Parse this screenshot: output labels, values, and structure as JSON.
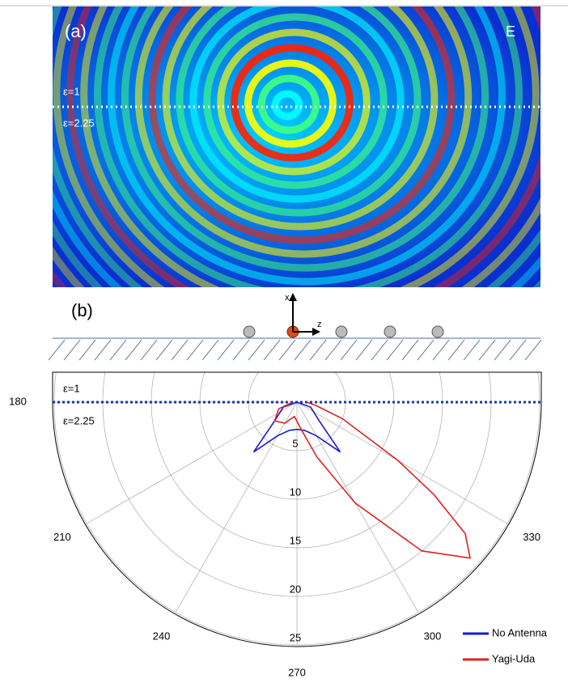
{
  "panel_a": {
    "label": "(a)",
    "field": "E",
    "upper_medium": "ε=1",
    "lower_medium": "ε=2.25"
  },
  "panel_b": {
    "label": "(b)",
    "axis_x": "x",
    "axis_z": "z"
  },
  "chart_data": {
    "type": "polar",
    "upper_medium": "ε=1",
    "lower_medium": "ε=2.25",
    "rlim": [
      0,
      25
    ],
    "rticks": [
      5,
      10,
      15,
      20,
      25
    ],
    "thetaticks": [
      180,
      210,
      240,
      270,
      300,
      330
    ],
    "grid": true,
    "legend": "lower right",
    "series": [
      {
        "name": "No Antenna",
        "color": "#1a1acc",
        "theta": [
          180,
          200,
          220,
          229,
          240,
          255,
          270,
          285,
          300,
          311,
          320,
          340,
          360
        ],
        "r": [
          0,
          1.5,
          3,
          6.8,
          4,
          3,
          2.8,
          3,
          4,
          6.8,
          3,
          1.5,
          0
        ]
      },
      {
        "name": "Yagi-Uda",
        "color": "#dd2222",
        "theta": [
          185,
          200,
          220,
          240,
          260,
          280,
          290,
          300,
          310,
          318,
          322,
          326,
          330,
          340,
          350,
          360
        ],
        "r": [
          0.5,
          2,
          3,
          2.5,
          1.5,
          3,
          6,
          12,
          20,
          24,
          22,
          17,
          12,
          5,
          2,
          1
        ]
      }
    ]
  }
}
